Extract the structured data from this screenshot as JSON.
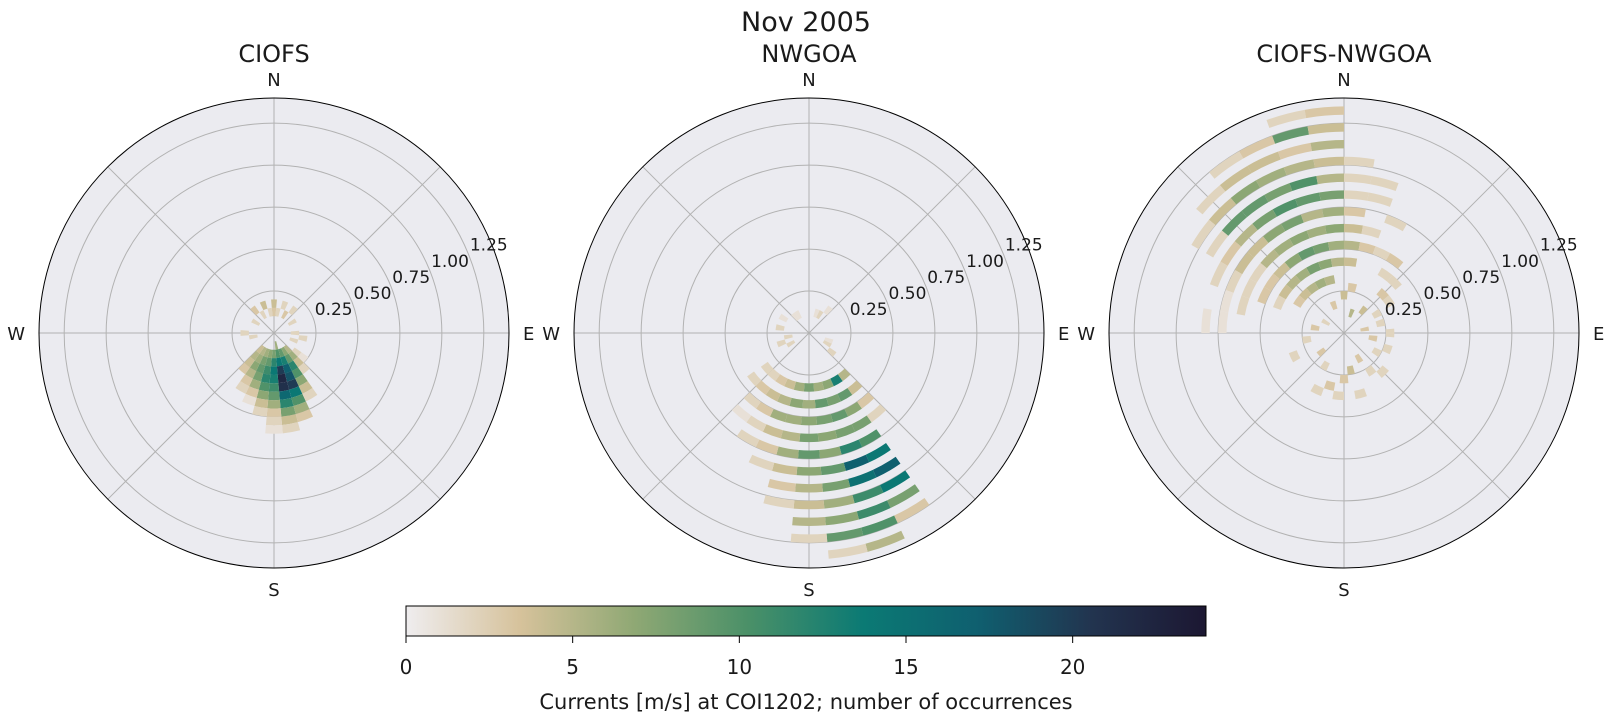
{
  "figure_title": "Nov 2005",
  "colorbar": {
    "label": "Currents [m/s] at COI1202; number of occurrences",
    "ticks": [
      0,
      5,
      10,
      15,
      20
    ],
    "min": 0,
    "max": 24,
    "colormap": [
      "#efedef",
      "#d6c29b",
      "#8fa874",
      "#4a9068",
      "#0b7a74",
      "#0f5f6f",
      "#22344f",
      "#1c1732"
    ]
  },
  "compass_labels": {
    "n": "N",
    "e": "E",
    "s": "S",
    "w": "W"
  },
  "radial_ticks": [
    "0.25",
    "0.50",
    "0.75",
    "1.00",
    "1.25"
  ],
  "chart_data": [
    {
      "type": "heatmap",
      "projection": "polar",
      "title": "CIOFS",
      "r_max": 1.4,
      "r_ticks": [
        0.25,
        0.5,
        0.75,
        1.0,
        1.25
      ],
      "theta_direction": "clockwise",
      "theta_zero": "N",
      "bin_width_deg": 10,
      "bin_width_r": 0.05,
      "cells": [
        [
          170,
          0.05,
          6
        ],
        [
          170,
          0.1,
          10
        ],
        [
          170,
          0.15,
          14
        ],
        [
          170,
          0.2,
          20
        ],
        [
          170,
          0.25,
          22
        ],
        [
          170,
          0.3,
          21
        ],
        [
          170,
          0.35,
          16
        ],
        [
          170,
          0.4,
          12
        ],
        [
          170,
          0.45,
          8
        ],
        [
          170,
          0.5,
          4
        ],
        [
          170,
          0.55,
          2
        ],
        [
          160,
          0.1,
          9
        ],
        [
          160,
          0.15,
          13
        ],
        [
          160,
          0.2,
          17
        ],
        [
          160,
          0.25,
          18
        ],
        [
          160,
          0.3,
          20
        ],
        [
          160,
          0.35,
          14
        ],
        [
          160,
          0.4,
          10
        ],
        [
          160,
          0.45,
          6
        ],
        [
          160,
          0.5,
          3
        ],
        [
          180,
          0.1,
          8
        ],
        [
          180,
          0.15,
          12
        ],
        [
          180,
          0.2,
          14
        ],
        [
          180,
          0.25,
          13
        ],
        [
          180,
          0.3,
          11
        ],
        [
          180,
          0.35,
          9
        ],
        [
          180,
          0.4,
          6
        ],
        [
          180,
          0.45,
          3
        ],
        [
          180,
          0.5,
          2
        ],
        [
          180,
          0.55,
          1
        ],
        [
          190,
          0.1,
          7
        ],
        [
          190,
          0.15,
          9
        ],
        [
          190,
          0.2,
          11
        ],
        [
          190,
          0.25,
          12
        ],
        [
          190,
          0.3,
          10
        ],
        [
          190,
          0.35,
          7
        ],
        [
          190,
          0.4,
          4
        ],
        [
          190,
          0.45,
          2
        ],
        [
          200,
          0.1,
          6
        ],
        [
          200,
          0.15,
          8
        ],
        [
          200,
          0.2,
          9
        ],
        [
          200,
          0.25,
          8
        ],
        [
          200,
          0.3,
          6
        ],
        [
          200,
          0.35,
          3
        ],
        [
          200,
          0.4,
          1
        ],
        [
          210,
          0.1,
          5
        ],
        [
          210,
          0.15,
          6
        ],
        [
          210,
          0.2,
          7
        ],
        [
          210,
          0.25,
          5
        ],
        [
          210,
          0.3,
          3
        ],
        [
          210,
          0.35,
          2
        ],
        [
          220,
          0.1,
          4
        ],
        [
          220,
          0.15,
          5
        ],
        [
          220,
          0.2,
          4
        ],
        [
          220,
          0.25,
          3
        ],
        [
          150,
          0.1,
          7
        ],
        [
          150,
          0.15,
          9
        ],
        [
          150,
          0.2,
          12
        ],
        [
          150,
          0.25,
          10
        ],
        [
          150,
          0.3,
          7
        ],
        [
          150,
          0.35,
          4
        ],
        [
          150,
          0.4,
          2
        ],
        [
          140,
          0.1,
          5
        ],
        [
          140,
          0.15,
          6
        ],
        [
          140,
          0.2,
          4
        ],
        [
          140,
          0.25,
          2
        ],
        [
          130,
          0.15,
          2
        ],
        [
          130,
          0.2,
          1
        ],
        [
          0,
          0.1,
          3
        ],
        [
          0,
          0.15,
          4
        ],
        [
          10,
          0.1,
          2
        ],
        [
          350,
          0.1,
          2
        ],
        [
          20,
          0.15,
          2
        ],
        [
          30,
          0.1,
          3
        ],
        [
          40,
          0.15,
          2
        ],
        [
          60,
          0.1,
          2
        ],
        [
          90,
          0.1,
          2
        ],
        [
          100,
          0.15,
          2
        ],
        [
          110,
          0.1,
          2
        ],
        [
          260,
          0.1,
          2
        ],
        [
          270,
          0.15,
          2
        ],
        [
          300,
          0.1,
          2
        ],
        [
          320,
          0.15,
          3
        ],
        [
          330,
          0.1,
          2
        ],
        [
          340,
          0.15,
          4
        ]
      ]
    },
    {
      "type": "heatmap",
      "projection": "polar",
      "title": "NWGOA",
      "r_max": 1.4,
      "r_ticks": [
        0.25,
        0.5,
        0.75,
        1.0,
        1.25
      ],
      "theta_direction": "clockwise",
      "theta_zero": "N",
      "bin_width_deg": 10,
      "bin_width_r": 0.05,
      "cells": [
        [
          150,
          0.3,
          13
        ],
        [
          150,
          0.4,
          9
        ],
        [
          150,
          0.5,
          7
        ],
        [
          150,
          0.6,
          8
        ],
        [
          150,
          0.7,
          10
        ],
        [
          150,
          0.8,
          14
        ],
        [
          150,
          0.9,
          17
        ],
        [
          150,
          1.0,
          14
        ],
        [
          150,
          1.1,
          8
        ],
        [
          150,
          1.2,
          3
        ],
        [
          160,
          0.3,
          7
        ],
        [
          160,
          0.4,
          8
        ],
        [
          160,
          0.5,
          9
        ],
        [
          160,
          0.6,
          8
        ],
        [
          160,
          0.7,
          12
        ],
        [
          160,
          0.8,
          17
        ],
        [
          160,
          0.9,
          15
        ],
        [
          160,
          1.0,
          11
        ],
        [
          160,
          1.1,
          11
        ],
        [
          160,
          1.2,
          10
        ],
        [
          160,
          1.3,
          5
        ],
        [
          170,
          0.3,
          6
        ],
        [
          170,
          0.4,
          9
        ],
        [
          170,
          0.5,
          8
        ],
        [
          170,
          0.6,
          7
        ],
        [
          170,
          0.7,
          7
        ],
        [
          170,
          0.8,
          9
        ],
        [
          170,
          0.9,
          8
        ],
        [
          170,
          1.0,
          6
        ],
        [
          170,
          1.1,
          7
        ],
        [
          170,
          1.2,
          9
        ],
        [
          170,
          1.3,
          2
        ],
        [
          180,
          0.3,
          8
        ],
        [
          180,
          0.4,
          6
        ],
        [
          180,
          0.5,
          7
        ],
        [
          180,
          0.6,
          8
        ],
        [
          180,
          0.7,
          9
        ],
        [
          180,
          0.8,
          7
        ],
        [
          180,
          0.9,
          5
        ],
        [
          180,
          1.0,
          4
        ],
        [
          180,
          1.1,
          5
        ],
        [
          180,
          1.2,
          2
        ],
        [
          190,
          0.3,
          6
        ],
        [
          190,
          0.4,
          7
        ],
        [
          190,
          0.5,
          6
        ],
        [
          190,
          0.6,
          5
        ],
        [
          190,
          0.7,
          6
        ],
        [
          190,
          0.8,
          4
        ],
        [
          190,
          0.9,
          3
        ],
        [
          190,
          1.0,
          2
        ],
        [
          200,
          0.3,
          4
        ],
        [
          200,
          0.4,
          5
        ],
        [
          200,
          0.5,
          6
        ],
        [
          200,
          0.6,
          4
        ],
        [
          200,
          0.7,
          3
        ],
        [
          200,
          0.8,
          2
        ],
        [
          210,
          0.3,
          3
        ],
        [
          210,
          0.4,
          4
        ],
        [
          210,
          0.5,
          3
        ],
        [
          210,
          0.6,
          2
        ],
        [
          210,
          0.7,
          2
        ],
        [
          220,
          0.3,
          2
        ],
        [
          220,
          0.4,
          3
        ],
        [
          220,
          0.5,
          2
        ],
        [
          220,
          0.6,
          1
        ],
        [
          140,
          0.3,
          5
        ],
        [
          140,
          0.4,
          4
        ],
        [
          140,
          0.5,
          3
        ],
        [
          140,
          0.6,
          2
        ],
        [
          230,
          0.3,
          2
        ],
        [
          230,
          0.4,
          2
        ],
        [
          30,
          0.1,
          2
        ],
        [
          40,
          0.15,
          1
        ],
        [
          20,
          0.1,
          1
        ],
        [
          330,
          0.1,
          1
        ],
        [
          320,
          0.1,
          1
        ],
        [
          300,
          0.15,
          1
        ],
        [
          280,
          0.15,
          2
        ],
        [
          260,
          0.1,
          2
        ],
        [
          250,
          0.15,
          2
        ],
        [
          240,
          0.1,
          2
        ],
        [
          120,
          0.1,
          2
        ],
        [
          130,
          0.15,
          2
        ],
        [
          110,
          0.1,
          1
        ]
      ]
    },
    {
      "type": "heatmap",
      "projection": "polar",
      "title": "CIOFS-NWGOA",
      "r_max": 1.4,
      "r_ticks": [
        0.25,
        0.5,
        0.75,
        1.0,
        1.25
      ],
      "theta_direction": "clockwise",
      "theta_zero": "N",
      "bin_width_deg": 10,
      "bin_width_r": 0.05,
      "cells": [
        [
          335,
          0.3,
          6
        ],
        [
          335,
          0.4,
          8
        ],
        [
          335,
          0.5,
          9
        ],
        [
          335,
          0.6,
          7
        ],
        [
          335,
          0.7,
          8
        ],
        [
          335,
          0.8,
          10
        ],
        [
          335,
          0.9,
          8
        ],
        [
          335,
          1.0,
          6
        ],
        [
          335,
          1.1,
          4
        ],
        [
          335,
          1.2,
          3
        ],
        [
          345,
          0.3,
          5
        ],
        [
          345,
          0.4,
          7
        ],
        [
          345,
          0.5,
          8
        ],
        [
          345,
          0.6,
          6
        ],
        [
          345,
          0.7,
          5
        ],
        [
          345,
          0.8,
          9
        ],
        [
          345,
          0.9,
          10
        ],
        [
          345,
          1.0,
          5
        ],
        [
          345,
          1.1,
          3
        ],
        [
          345,
          1.2,
          9
        ],
        [
          345,
          1.3,
          2
        ],
        [
          355,
          0.4,
          5
        ],
        [
          355,
          0.5,
          6
        ],
        [
          355,
          0.6,
          7
        ],
        [
          355,
          0.7,
          6
        ],
        [
          355,
          0.8,
          8
        ],
        [
          355,
          0.9,
          5
        ],
        [
          355,
          1.0,
          4
        ],
        [
          355,
          1.1,
          5
        ],
        [
          355,
          1.2,
          4
        ],
        [
          355,
          1.3,
          3
        ],
        [
          325,
          0.3,
          5
        ],
        [
          325,
          0.4,
          6
        ],
        [
          325,
          0.5,
          7
        ],
        [
          325,
          0.6,
          6
        ],
        [
          325,
          0.7,
          7
        ],
        [
          325,
          0.8,
          8
        ],
        [
          325,
          0.9,
          9
        ],
        [
          325,
          1.0,
          7
        ],
        [
          325,
          1.1,
          4
        ],
        [
          325,
          1.2,
          2
        ],
        [
          315,
          0.3,
          4
        ],
        [
          315,
          0.4,
          5
        ],
        [
          315,
          0.5,
          4
        ],
        [
          315,
          0.6,
          5
        ],
        [
          315,
          0.7,
          4
        ],
        [
          315,
          0.8,
          5
        ],
        [
          315,
          0.9,
          9
        ],
        [
          315,
          1.0,
          4
        ],
        [
          315,
          1.1,
          2
        ],
        [
          305,
          0.3,
          3
        ],
        [
          305,
          0.4,
          4
        ],
        [
          305,
          0.5,
          3
        ],
        [
          305,
          0.6,
          2
        ],
        [
          305,
          0.7,
          4
        ],
        [
          305,
          0.8,
          3
        ],
        [
          305,
          0.9,
          2
        ],
        [
          305,
          1.0,
          2
        ],
        [
          295,
          0.4,
          2
        ],
        [
          295,
          0.5,
          3
        ],
        [
          295,
          0.6,
          2
        ],
        [
          295,
          0.7,
          2
        ],
        [
          295,
          0.8,
          2
        ],
        [
          285,
          0.6,
          2
        ],
        [
          285,
          0.7,
          1
        ],
        [
          275,
          0.7,
          1
        ],
        [
          275,
          0.8,
          1
        ],
        [
          5,
          0.4,
          4
        ],
        [
          5,
          0.5,
          5
        ],
        [
          5,
          0.6,
          4
        ],
        [
          5,
          0.7,
          3
        ],
        [
          5,
          0.8,
          2
        ],
        [
          5,
          0.9,
          2
        ],
        [
          5,
          1.0,
          2
        ],
        [
          15,
          0.5,
          3
        ],
        [
          15,
          0.6,
          2
        ],
        [
          15,
          0.8,
          2
        ],
        [
          15,
          0.9,
          2
        ],
        [
          25,
          0.5,
          2
        ],
        [
          25,
          0.7,
          2
        ],
        [
          35,
          0.4,
          2
        ],
        [
          35,
          0.5,
          3
        ],
        [
          45,
          0.4,
          2
        ],
        [
          45,
          0.3,
          3
        ],
        [
          55,
          0.3,
          2
        ],
        [
          20,
          0.1,
          5
        ],
        [
          40,
          0.15,
          4
        ],
        [
          80,
          0.1,
          3
        ],
        [
          100,
          0.15,
          3
        ],
        [
          120,
          0.2,
          2
        ],
        [
          135,
          0.3,
          2
        ],
        [
          150,
          0.15,
          3
        ],
        [
          170,
          0.2,
          4
        ],
        [
          180,
          0.25,
          3
        ],
        [
          185,
          0.35,
          2
        ],
        [
          195,
          0.3,
          3
        ],
        [
          210,
          0.2,
          2
        ],
        [
          230,
          0.15,
          3
        ],
        [
          260,
          0.2,
          2
        ],
        [
          280,
          0.15,
          3
        ],
        [
          300,
          0.1,
          2
        ],
        [
          340,
          0.15,
          3
        ],
        [
          0,
          0.2,
          4
        ],
        [
          10,
          0.25,
          3
        ],
        [
          60,
          0.2,
          2
        ],
        [
          75,
          0.2,
          2
        ],
        [
          90,
          0.25,
          2
        ],
        [
          110,
          0.25,
          2
        ],
        [
          145,
          0.25,
          2
        ],
        [
          165,
          0.35,
          2
        ],
        [
          205,
          0.35,
          2
        ],
        [
          245,
          0.3,
          2
        ]
      ]
    }
  ]
}
